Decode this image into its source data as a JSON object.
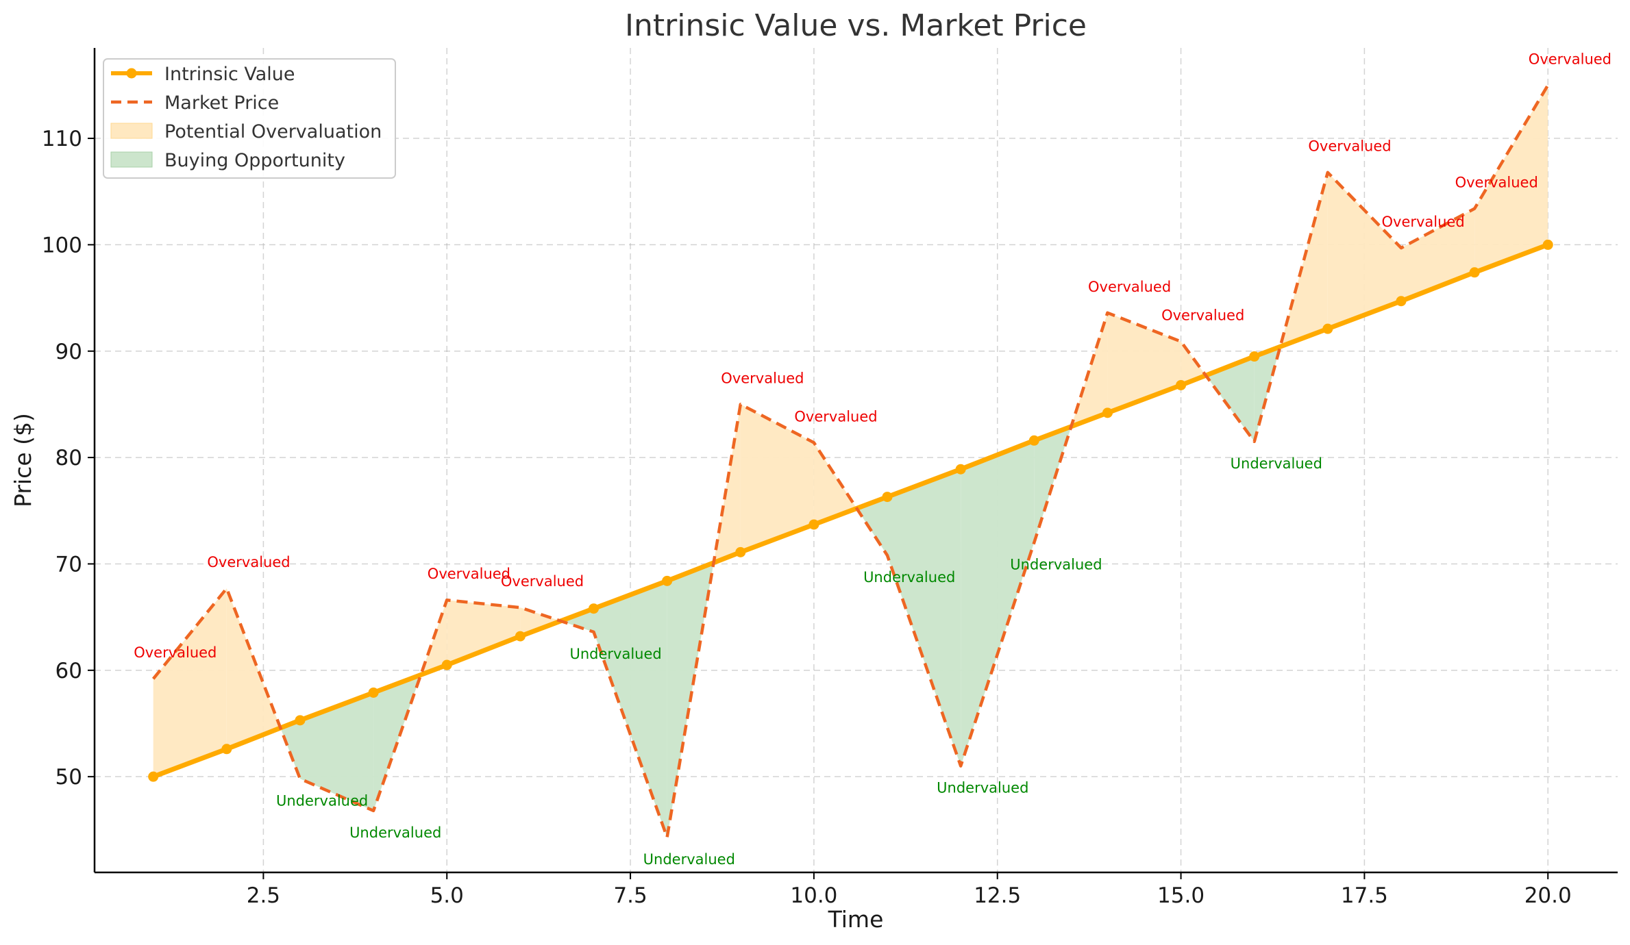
{
  "chart_data": {
    "type": "line",
    "title": "Intrinsic Value vs. Market Price",
    "xlabel": "Time",
    "ylabel": "Price ($)",
    "xlim": [
      0.2,
      20.95
    ],
    "ylim": [
      41,
      118.5
    ],
    "xticks": [
      2.5,
      5.0,
      7.5,
      10.0,
      12.5,
      15.0,
      17.5,
      20.0
    ],
    "xtick_labels": [
      "2.5",
      "5.0",
      "7.5",
      "10.0",
      "12.5",
      "15.0",
      "17.5",
      "20.0"
    ],
    "yticks": [
      50,
      60,
      70,
      80,
      90,
      100,
      110
    ],
    "ytick_labels": [
      "50",
      "60",
      "70",
      "80",
      "90",
      "100",
      "110"
    ],
    "grid": true,
    "legend_position": "upper-left",
    "x": [
      1,
      2,
      3,
      4,
      5,
      6,
      7,
      8,
      9,
      10,
      11,
      12,
      13,
      14,
      15,
      16,
      17,
      18,
      19,
      20
    ],
    "series": [
      {
        "name": "Intrinsic Value",
        "style": "solid-with-markers",
        "color": "#FFAA00",
        "values": [
          50.0,
          52.6,
          55.3,
          57.9,
          60.5,
          63.2,
          65.8,
          68.4,
          71.1,
          73.7,
          76.3,
          78.9,
          81.6,
          84.2,
          86.8,
          89.5,
          92.1,
          94.7,
          97.4,
          100.0
        ]
      },
      {
        "name": "Market Price",
        "style": "dashed",
        "color": "#EE6622",
        "values": [
          59.2,
          67.7,
          49.8,
          46.8,
          66.6,
          65.9,
          63.6,
          44.3,
          85.0,
          81.4,
          70.8,
          51.0,
          72.0,
          93.6,
          90.9,
          81.5,
          106.8,
          99.7,
          103.4,
          115.0
        ]
      }
    ],
    "fills": [
      {
        "name": "Potential Overvaluation",
        "color": "#FFE8C0",
        "condition": "market > intrinsic"
      },
      {
        "name": "Buying Opportunity",
        "color": "#CCE5CC",
        "condition": "market < intrinsic"
      }
    ],
    "annotations": {
      "over_text": "Overvalued",
      "under_text": "Undervalued",
      "over_color": "#EE0000",
      "under_color": "#008800"
    }
  }
}
